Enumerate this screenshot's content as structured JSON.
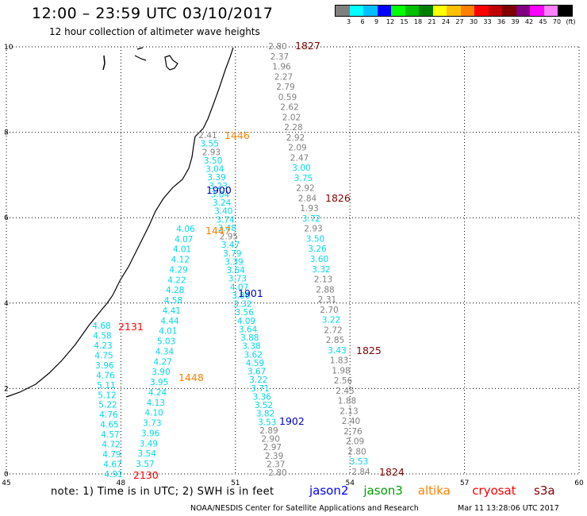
{
  "header": {
    "title": "12:00 – 23:59 UTC 03/10/2017",
    "subtitle": "12 hour collection of altimeter wave heights"
  },
  "legend": {
    "colors": [
      "#808080",
      "#00ffff",
      "#00c0ff",
      "#0000ff",
      "#00ff00",
      "#00c000",
      "#008000",
      "#ffff00",
      "#ffc000",
      "#ff8000",
      "#ff0000",
      "#c00000",
      "#800000",
      "#800080",
      "#ff00ff",
      "#ff80ff",
      "#000000"
    ],
    "ticks": [
      "3",
      "6",
      "9",
      "12",
      "15",
      "18",
      "21",
      "24",
      "27",
      "30",
      "33",
      "36",
      "39",
      "42",
      "45",
      "70",
      "(ft)"
    ]
  },
  "axes": {
    "x_ticks": [
      "45",
      "48",
      "51",
      "54",
      "57",
      "60"
    ],
    "y_ticks": [
      "0",
      "2",
      "4",
      "6",
      "8",
      "10"
    ]
  },
  "tracks": [
    {
      "name": "jason2",
      "color": "#0000c0",
      "values": [
        "3.50",
        "3.04",
        "3.39",
        "3.23",
        "3.04",
        "3.24",
        "3.40",
        "3.74"
      ],
      "x0": 243,
      "y0": 196,
      "x1": 240,
      "y1": 266,
      "label": "1900",
      "label_pos": [
        260,
        244
      ]
    },
    {
      "name": "altika",
      "color": "#ff8000",
      "values": [],
      "label": "1446",
      "label_pos": [
        283,
        175
      ]
    },
    {
      "name": "altika",
      "color": "#ff8000",
      "values": [],
      "label": "1447",
      "label_pos": [
        259,
        295
      ]
    },
    {
      "name": "altika",
      "color": "#ff8000",
      "values": [],
      "label": "1448",
      "label_pos": [
        225,
        480
      ]
    },
    {
      "name": "cryosat",
      "color": "#ff0000",
      "values": [],
      "label": "2131",
      "label_pos": [
        149,
        416
      ]
    },
    {
      "name": "cryosat",
      "color": "#ff0000",
      "values": [],
      "label": "2130",
      "label_pos": [
        168,
        603
      ]
    },
    {
      "name": "s3a",
      "color": "#800000",
      "values": [],
      "label": "1827",
      "label_pos": [
        372,
        62
      ]
    },
    {
      "name": "s3a",
      "color": "#800000",
      "values": [],
      "label": "1826",
      "label_pos": [
        410,
        254
      ]
    },
    {
      "name": "s3a",
      "color": "#800000",
      "values": [],
      "label": "1825",
      "label_pos": [
        449,
        446
      ]
    },
    {
      "name": "s3a",
      "color": "#800000",
      "values": [],
      "label": "1824",
      "label_pos": [
        478,
        599
      ]
    },
    {
      "name": "jason2",
      "color": "#0000c0",
      "values": [],
      "label": "1901",
      "label_pos": [
        300,
        374
      ]
    },
    {
      "name": "jason2",
      "color": "#0000c0",
      "values": [],
      "label": "1902",
      "label_pos": [
        352,
        535
      ]
    }
  ],
  "footer": {
    "note": "note:  1) Time is in UTC;  2) SWH is in feet",
    "satellites": [
      {
        "name": "jason2",
        "color": "#0000ff"
      },
      {
        "name": "jason3",
        "color": "#00a000"
      },
      {
        "name": "altika",
        "color": "#ff8000"
      },
      {
        "name": "cryosat",
        "color": "#ff0000"
      },
      {
        "name": "s3a",
        "color": "#800000"
      }
    ],
    "credit": "NOAA/NESDIS Center for Satellite Applications and Research",
    "generated": "Mar 11 13:28:06 UTC 2017"
  },
  "observations": {
    "s3a_1827": [
      "2.80",
      "2.37",
      "1.96",
      "2.27",
      "2.79",
      "0.59",
      "2.62",
      "2.02",
      "2.28",
      "2.92",
      "2.09",
      "2.47",
      "3.00",
      "3.75",
      "2.92",
      "2.84",
      "1.93",
      "3.72",
      "2.93",
      "3.50",
      "3.26",
      "3.60",
      "3.32",
      "2.13",
      "2.88",
      "2.31",
      "2.70",
      "3.22",
      "2.72",
      "2.85",
      "3.43",
      "1.83",
      "1.98",
      "2.56",
      "2.45",
      "1.88",
      "2.13",
      "2.40",
      "2.76",
      "2.09",
      "2.80",
      "3.53",
      "2.84"
    ],
    "jason2_1900": [
      "2.41",
      "3.55",
      "2.93",
      "3.50",
      "3.04",
      "3.39",
      "3.23",
      "3.04",
      "3.24",
      "3.40",
      "3.74",
      "3.48",
      "2.95",
      "3.47",
      "3.79",
      "3.39",
      "3.64",
      "3.73",
      "4.07",
      "3.86",
      "3.32",
      "3.56",
      "4.09",
      "3.64",
      "3.88",
      "3.38",
      "3.62",
      "4.59",
      "3.67",
      "3.22",
      "3.71",
      "3.36",
      "3.52",
      "3.82",
      "3.53",
      "2.89",
      "2.90",
      "2.97",
      "2.39",
      "2.37",
      "2.80"
    ],
    "altika_1447": [
      "4.06",
      "4.07",
      "4.01",
      "4.12",
      "4.29",
      "4.22",
      "4.28",
      "4.58",
      "4.41",
      "4.44",
      "4.01",
      "5.03",
      "4.34",
      "4.27",
      "3.90",
      "3.95",
      "4.24",
      "4.13",
      "4.10",
      "3.73",
      "3.96",
      "3.49",
      "3.54",
      "3.57"
    ],
    "cryosat_2131": [
      "4.68",
      "4.58",
      "4.23",
      "4.75",
      "3.96",
      "4.76",
      "5.11",
      "5.12",
      "5.22",
      "4.76",
      "4.65",
      "4.57",
      "4.72",
      "4.79",
      "4.67",
      "4.91"
    ]
  }
}
